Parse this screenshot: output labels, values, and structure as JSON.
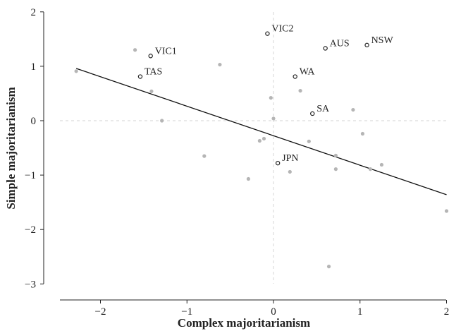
{
  "chart_data": {
    "type": "scatter",
    "xlabel": "Complex majoritarianism",
    "ylabel": "Simple majoritarianism",
    "xlim": [
      -2.55,
      2.0
    ],
    "ylim": [
      -3.15,
      2.05
    ],
    "xticks": [
      -2,
      -1,
      0,
      1,
      2
    ],
    "yticks": [
      -3,
      -2,
      -1,
      0,
      1,
      2
    ],
    "x_tick_labels": [
      "−2",
      "−1",
      "0",
      "1",
      "2"
    ],
    "y_tick_labels": [
      "−3",
      "−2",
      "−1",
      "0",
      "1",
      "2"
    ],
    "reference_lines": {
      "x": 0,
      "y": 0
    },
    "grid": false,
    "fit_line": {
      "x": [
        -2.28,
        2.0
      ],
      "y": [
        0.96,
        -1.36
      ]
    },
    "unlabeled_points": [
      {
        "x": -2.28,
        "y": 0.91
      },
      {
        "x": -1.6,
        "y": 1.3
      },
      {
        "x": -1.41,
        "y": 0.54
      },
      {
        "x": -1.29,
        "y": 0.0
      },
      {
        "x": -0.62,
        "y": 1.03
      },
      {
        "x": -0.8,
        "y": -0.65
      },
      {
        "x": -0.29,
        "y": -1.07
      },
      {
        "x": -0.16,
        "y": -0.37
      },
      {
        "x": -0.11,
        "y": -0.33
      },
      {
        "x": -0.03,
        "y": 0.42
      },
      {
        "x": 0.0,
        "y": 0.04
      },
      {
        "x": 0.19,
        "y": -0.94
      },
      {
        "x": 0.31,
        "y": 0.55
      },
      {
        "x": 0.41,
        "y": -0.38
      },
      {
        "x": 0.72,
        "y": -0.64
      },
      {
        "x": 0.72,
        "y": -0.89
      },
      {
        "x": 0.92,
        "y": 0.2
      },
      {
        "x": 1.03,
        "y": -0.24
      },
      {
        "x": 1.12,
        "y": -0.89
      },
      {
        "x": 1.25,
        "y": -0.81
      },
      {
        "x": 2.0,
        "y": -1.66
      },
      {
        "x": 0.64,
        "y": -2.68
      }
    ],
    "labeled_points": [
      {
        "label": "VIC2",
        "x": -0.07,
        "y": 1.6
      },
      {
        "label": "VIC1",
        "x": -1.42,
        "y": 1.19
      },
      {
        "label": "TAS",
        "x": -1.54,
        "y": 0.81
      },
      {
        "label": "AUS",
        "x": 0.6,
        "y": 1.33
      },
      {
        "label": "NSW",
        "x": 1.08,
        "y": 1.39
      },
      {
        "label": "WA",
        "x": 0.25,
        "y": 0.81
      },
      {
        "label": "SA",
        "x": 0.45,
        "y": 0.13
      },
      {
        "label": "JPN",
        "x": 0.05,
        "y": -0.78
      }
    ]
  }
}
